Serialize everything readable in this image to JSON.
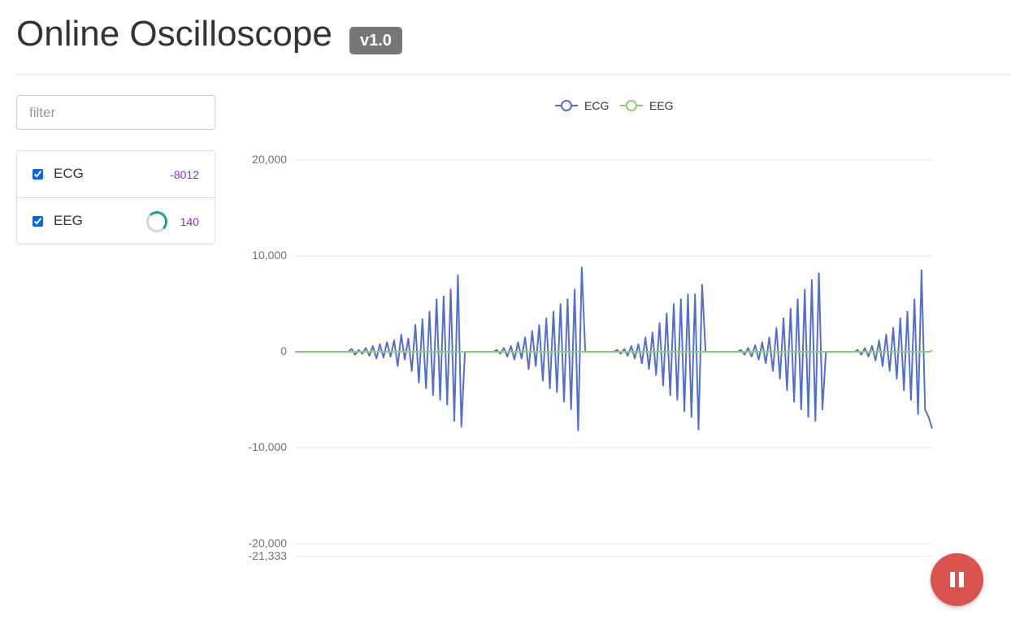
{
  "header": {
    "title": "Online Oscilloscope",
    "version": "v1.0"
  },
  "filter": {
    "placeholder": "filter",
    "value": ""
  },
  "channels": [
    {
      "label": "ECG",
      "checked": true,
      "value": "-8012",
      "loading": false
    },
    {
      "label": "EEG",
      "checked": true,
      "value": "140",
      "loading": true
    }
  ],
  "colors": {
    "ecg": "#5470c6",
    "eeg": "#91cc75",
    "pause_button": "#d9534f",
    "value_text": "#8a2be2",
    "badge": "#777777"
  },
  "controls": {
    "pause_icon": "pause-icon"
  },
  "chart_data": {
    "type": "line",
    "legend": [
      "ECG",
      "EEG"
    ],
    "legend_position": "top-center",
    "ylim": [
      -21333,
      20000
    ],
    "yticks": [
      "20,000",
      "10,000",
      "0",
      "-10,000",
      "-20,000",
      "-21,333"
    ],
    "grid": true,
    "series": [
      {
        "name": "ECG",
        "values": [
          0,
          0,
          0,
          0,
          0,
          0,
          0,
          0,
          0,
          0,
          0,
          0,
          0,
          0,
          0,
          0,
          300,
          -300,
          200,
          -200,
          400,
          -400,
          600,
          -700,
          800,
          -600,
          1000,
          -500,
          1200,
          -1500,
          1800,
          -800,
          1400,
          -2000,
          2800,
          -3200,
          3400,
          -3800,
          4200,
          -4500,
          5500,
          -5000,
          5800,
          -5500,
          6500,
          -7200,
          8000,
          -7800,
          0,
          0,
          0,
          0,
          0,
          0,
          0,
          0,
          0,
          200,
          -200,
          400,
          -500,
          600,
          -800,
          1000,
          -700,
          1500,
          -1800,
          2200,
          -1500,
          2800,
          -3000,
          3500,
          -3800,
          4200,
          -4200,
          5000,
          -5200,
          5500,
          -6000,
          6500,
          -8200,
          8800,
          0,
          0,
          0,
          0,
          0,
          0,
          0,
          0,
          0,
          200,
          -200,
          300,
          -400,
          600,
          -700,
          800,
          -1200,
          1500,
          -1800,
          2000,
          -2400,
          3000,
          -3500,
          4000,
          -4500,
          5000,
          -5000,
          5500,
          -6200,
          6000,
          -6800,
          6000,
          -8100,
          7000,
          0,
          0,
          0,
          0,
          0,
          0,
          0,
          0,
          0,
          0,
          200,
          -300,
          400,
          -500,
          700,
          -800,
          1000,
          -1200,
          1500,
          -2000,
          2500,
          -2800,
          3500,
          -4000,
          4500,
          -5200,
          5500,
          -6000,
          6500,
          -6800,
          7500,
          -7200,
          8200,
          -6000,
          0,
          0,
          0,
          0,
          0,
          0,
          0,
          0,
          0,
          200,
          -300,
          400,
          -500,
          600,
          -900,
          1200,
          -1500,
          1800,
          -2000,
          2500,
          -2800,
          3500,
          -4000,
          4200,
          -5000,
          5500,
          -6500,
          8500,
          -6000,
          -6800,
          -8000
        ],
        "color": "#5470c6"
      },
      {
        "name": "EEG",
        "values": [
          0,
          0,
          0,
          0,
          0,
          0,
          0,
          0,
          0,
          0,
          0,
          0,
          0,
          0,
          0,
          0,
          0,
          0,
          0,
          0,
          0,
          0,
          0,
          0,
          0,
          0,
          0,
          0,
          0,
          0,
          0,
          0,
          0,
          0,
          0,
          0,
          0,
          0,
          0,
          0,
          0,
          0,
          0,
          0,
          0,
          0,
          0,
          0,
          0,
          0,
          0,
          0,
          0,
          0,
          0,
          0,
          0,
          0,
          0,
          0,
          0,
          0,
          0,
          0,
          0,
          0,
          0,
          0,
          0,
          0,
          0,
          0,
          0,
          0,
          0,
          0,
          0,
          0,
          0,
          0,
          0,
          0,
          0,
          0,
          0,
          0,
          0,
          0,
          0,
          0,
          0,
          0,
          0,
          0,
          0,
          0,
          0,
          0,
          0,
          0,
          0,
          0,
          0,
          0,
          0,
          0,
          0,
          0,
          0,
          0,
          0,
          0,
          0,
          0,
          0,
          0,
          0,
          0,
          0,
          0,
          0,
          0,
          0,
          0,
          0,
          0,
          0,
          0,
          0,
          0,
          0,
          0,
          0,
          0,
          0,
          0,
          0,
          0,
          0,
          0,
          0,
          0,
          0,
          0,
          0,
          0,
          0,
          0,
          0,
          0,
          0,
          0,
          0,
          0,
          0,
          0,
          0,
          0,
          0,
          0,
          0,
          0,
          0,
          0,
          0,
          0,
          0,
          0,
          0,
          0,
          0,
          0,
          0,
          0,
          0,
          0,
          0,
          0,
          0,
          0,
          0,
          0,
          0,
          0,
          0,
          0,
          0,
          0,
          0,
          0,
          0,
          0,
          0,
          0,
          0,
          140
        ],
        "color": "#91cc75"
      }
    ]
  }
}
